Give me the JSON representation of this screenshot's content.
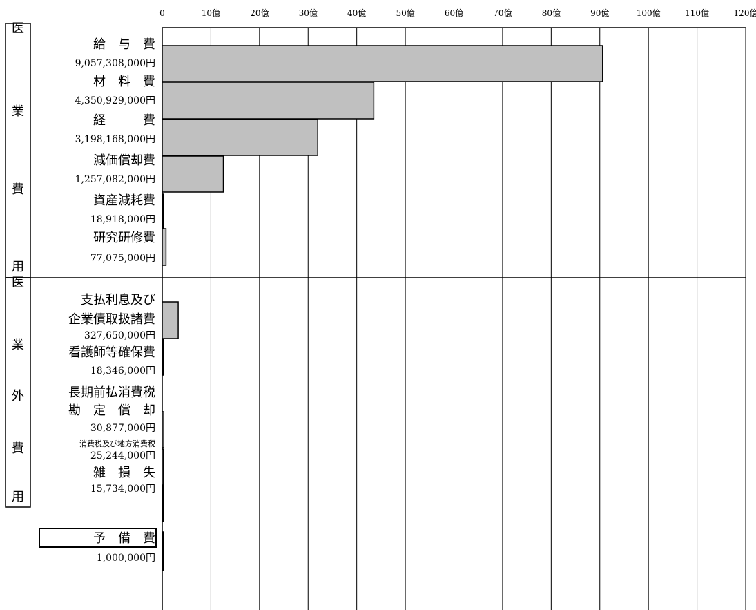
{
  "chart_data": {
    "type": "bar",
    "orientation": "horizontal",
    "unit_label": "円",
    "xlim": [
      0,
      12000000000
    ],
    "x_ticks": [
      {
        "value": 0,
        "label": "0"
      },
      {
        "value": 1000000000,
        "label": "10億"
      },
      {
        "value": 2000000000,
        "label": "20億"
      },
      {
        "value": 3000000000,
        "label": "30億"
      },
      {
        "value": 4000000000,
        "label": "40億"
      },
      {
        "value": 5000000000,
        "label": "50億"
      },
      {
        "value": 6000000000,
        "label": "60億"
      },
      {
        "value": 7000000000,
        "label": "70億"
      },
      {
        "value": 8000000000,
        "label": "80億"
      },
      {
        "value": 9000000000,
        "label": "90億"
      },
      {
        "value": 10000000000,
        "label": "100億"
      },
      {
        "value": 11000000000,
        "label": "110億"
      },
      {
        "value": 12000000000,
        "label": "120億"
      }
    ],
    "grid": true,
    "groups": [
      {
        "label_chars": [
          "医",
          "業",
          "費",
          "用"
        ]
      },
      {
        "label_chars": [
          "医",
          "業",
          "外",
          "費",
          "用"
        ]
      }
    ],
    "categories": [
      {
        "group": 0,
        "label_lines": [
          "給　与　費"
        ],
        "amount_text": "9,057,308,000円",
        "value": 9057308000
      },
      {
        "group": 0,
        "label_lines": [
          "材　料　費"
        ],
        "amount_text": "4,350,929,000円",
        "value": 4350929000
      },
      {
        "group": 0,
        "label_lines": [
          "経　　　費"
        ],
        "amount_text": "3,198,168,000円",
        "value": 3198168000
      },
      {
        "group": 0,
        "label_lines": [
          "減価償却費"
        ],
        "amount_text": "1,257,082,000円",
        "value": 1257082000
      },
      {
        "group": 0,
        "label_lines": [
          "資産減耗費"
        ],
        "amount_text": "18,918,000円",
        "value": 18918000
      },
      {
        "group": 0,
        "label_lines": [
          "研究研修費"
        ],
        "amount_text": "77,075,000円",
        "value": 77075000
      },
      {
        "group": 1,
        "label_lines": [
          "支払利息及び",
          "企業債取扱諸費"
        ],
        "amount_text": "327,650,000円",
        "value": 327650000
      },
      {
        "group": 1,
        "label_lines": [
          "看護師等確保費"
        ],
        "amount_text": "18,346,000円",
        "value": 18346000
      },
      {
        "group": 1,
        "label_lines": [
          "長期前払消費税",
          "勘　定　償　却"
        ],
        "amount_text": "30,877,000円",
        "value": 30877000
      },
      {
        "group": 1,
        "label_lines": [
          "消費税及び地方消費税"
        ],
        "amount_text": "25,244,000円",
        "value": 25244000
      },
      {
        "group": 1,
        "label_lines": [
          "雑　損　失"
        ],
        "amount_text": "15,734,000円",
        "value": 15734000
      },
      {
        "group": null,
        "label_lines": [
          "予　備　費"
        ],
        "amount_text": "1,000,000円",
        "value": 1000000
      }
    ],
    "bar_color": "#c0c0c0",
    "bar_stroke": "#000000"
  }
}
